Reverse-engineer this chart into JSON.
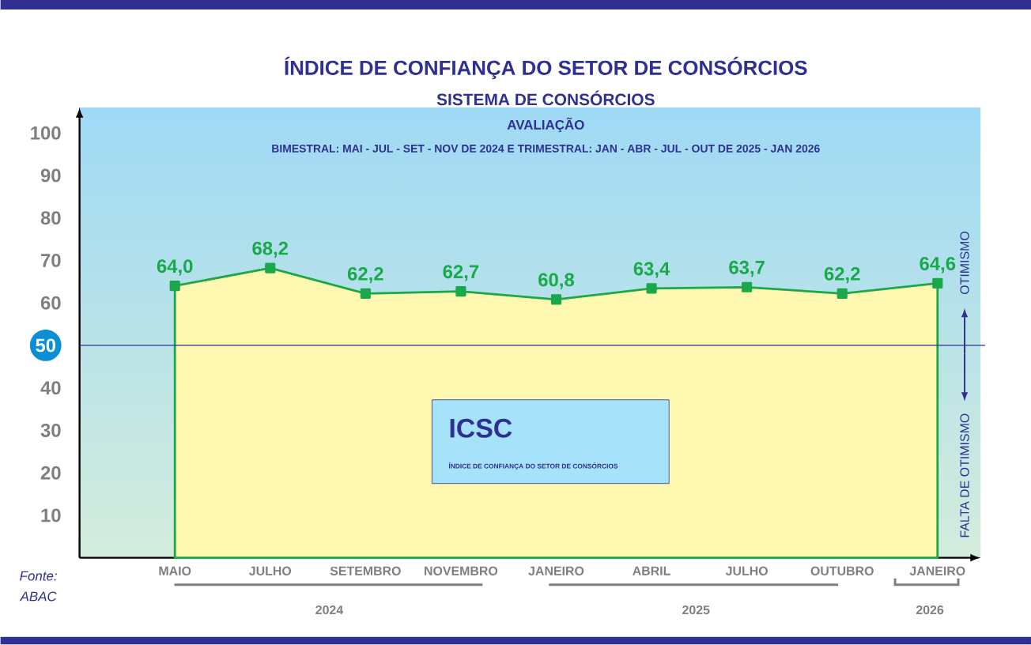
{
  "chart_data": {
    "type": "area",
    "title": "ÍNDICE DE CONFIANÇA DO SETOR DE CONSÓRCIOS",
    "subtitle": "SISTEMA DE CONSÓRCIOS",
    "categories": [
      "MAIO",
      "JULHO",
      "SETEMBRO",
      "NOVEMBRO",
      "JANEIRO",
      "ABRIL",
      "JULHO",
      "OUTUBRO",
      "JANEIRO"
    ],
    "series": [
      {
        "color": "#1aa84a",
        "values": [
          64.0,
          68.2,
          62.2,
          62.7,
          60.8,
          63.4,
          63.7,
          62.2,
          64.6
        ],
        "value_labels": [
          "64,0",
          "68,2",
          "62,2",
          "62,7",
          "60,8",
          "63,4",
          "63,7",
          "62,2",
          "64,6"
        ]
      }
    ],
    "ylim": [
      0,
      106
    ],
    "yticks": [
      10,
      20,
      30,
      40,
      50,
      60,
      70,
      80,
      90,
      100
    ],
    "ref_lines": [
      {
        "axis": "y",
        "value": 50,
        "color": "#2e3192"
      }
    ],
    "marker": "square",
    "grid": false,
    "annotations": [
      "AVALIAÇÃO",
      "BIMESTRAL: MAI - JUL - SET - NOV DE 2024 E TRIMESTRAL: JAN - ABR - JUL - OUT DE 2025 - JAN 2026",
      "OTIMISMO",
      "FALTA DE OTIMISMO",
      "ICSC",
      "ÍNDICE DE CONFIANÇA DO SETOR DE CONSÓRCIOS",
      "Fonte: ABAC",
      "2024",
      "2025",
      "2026"
    ]
  }
}
